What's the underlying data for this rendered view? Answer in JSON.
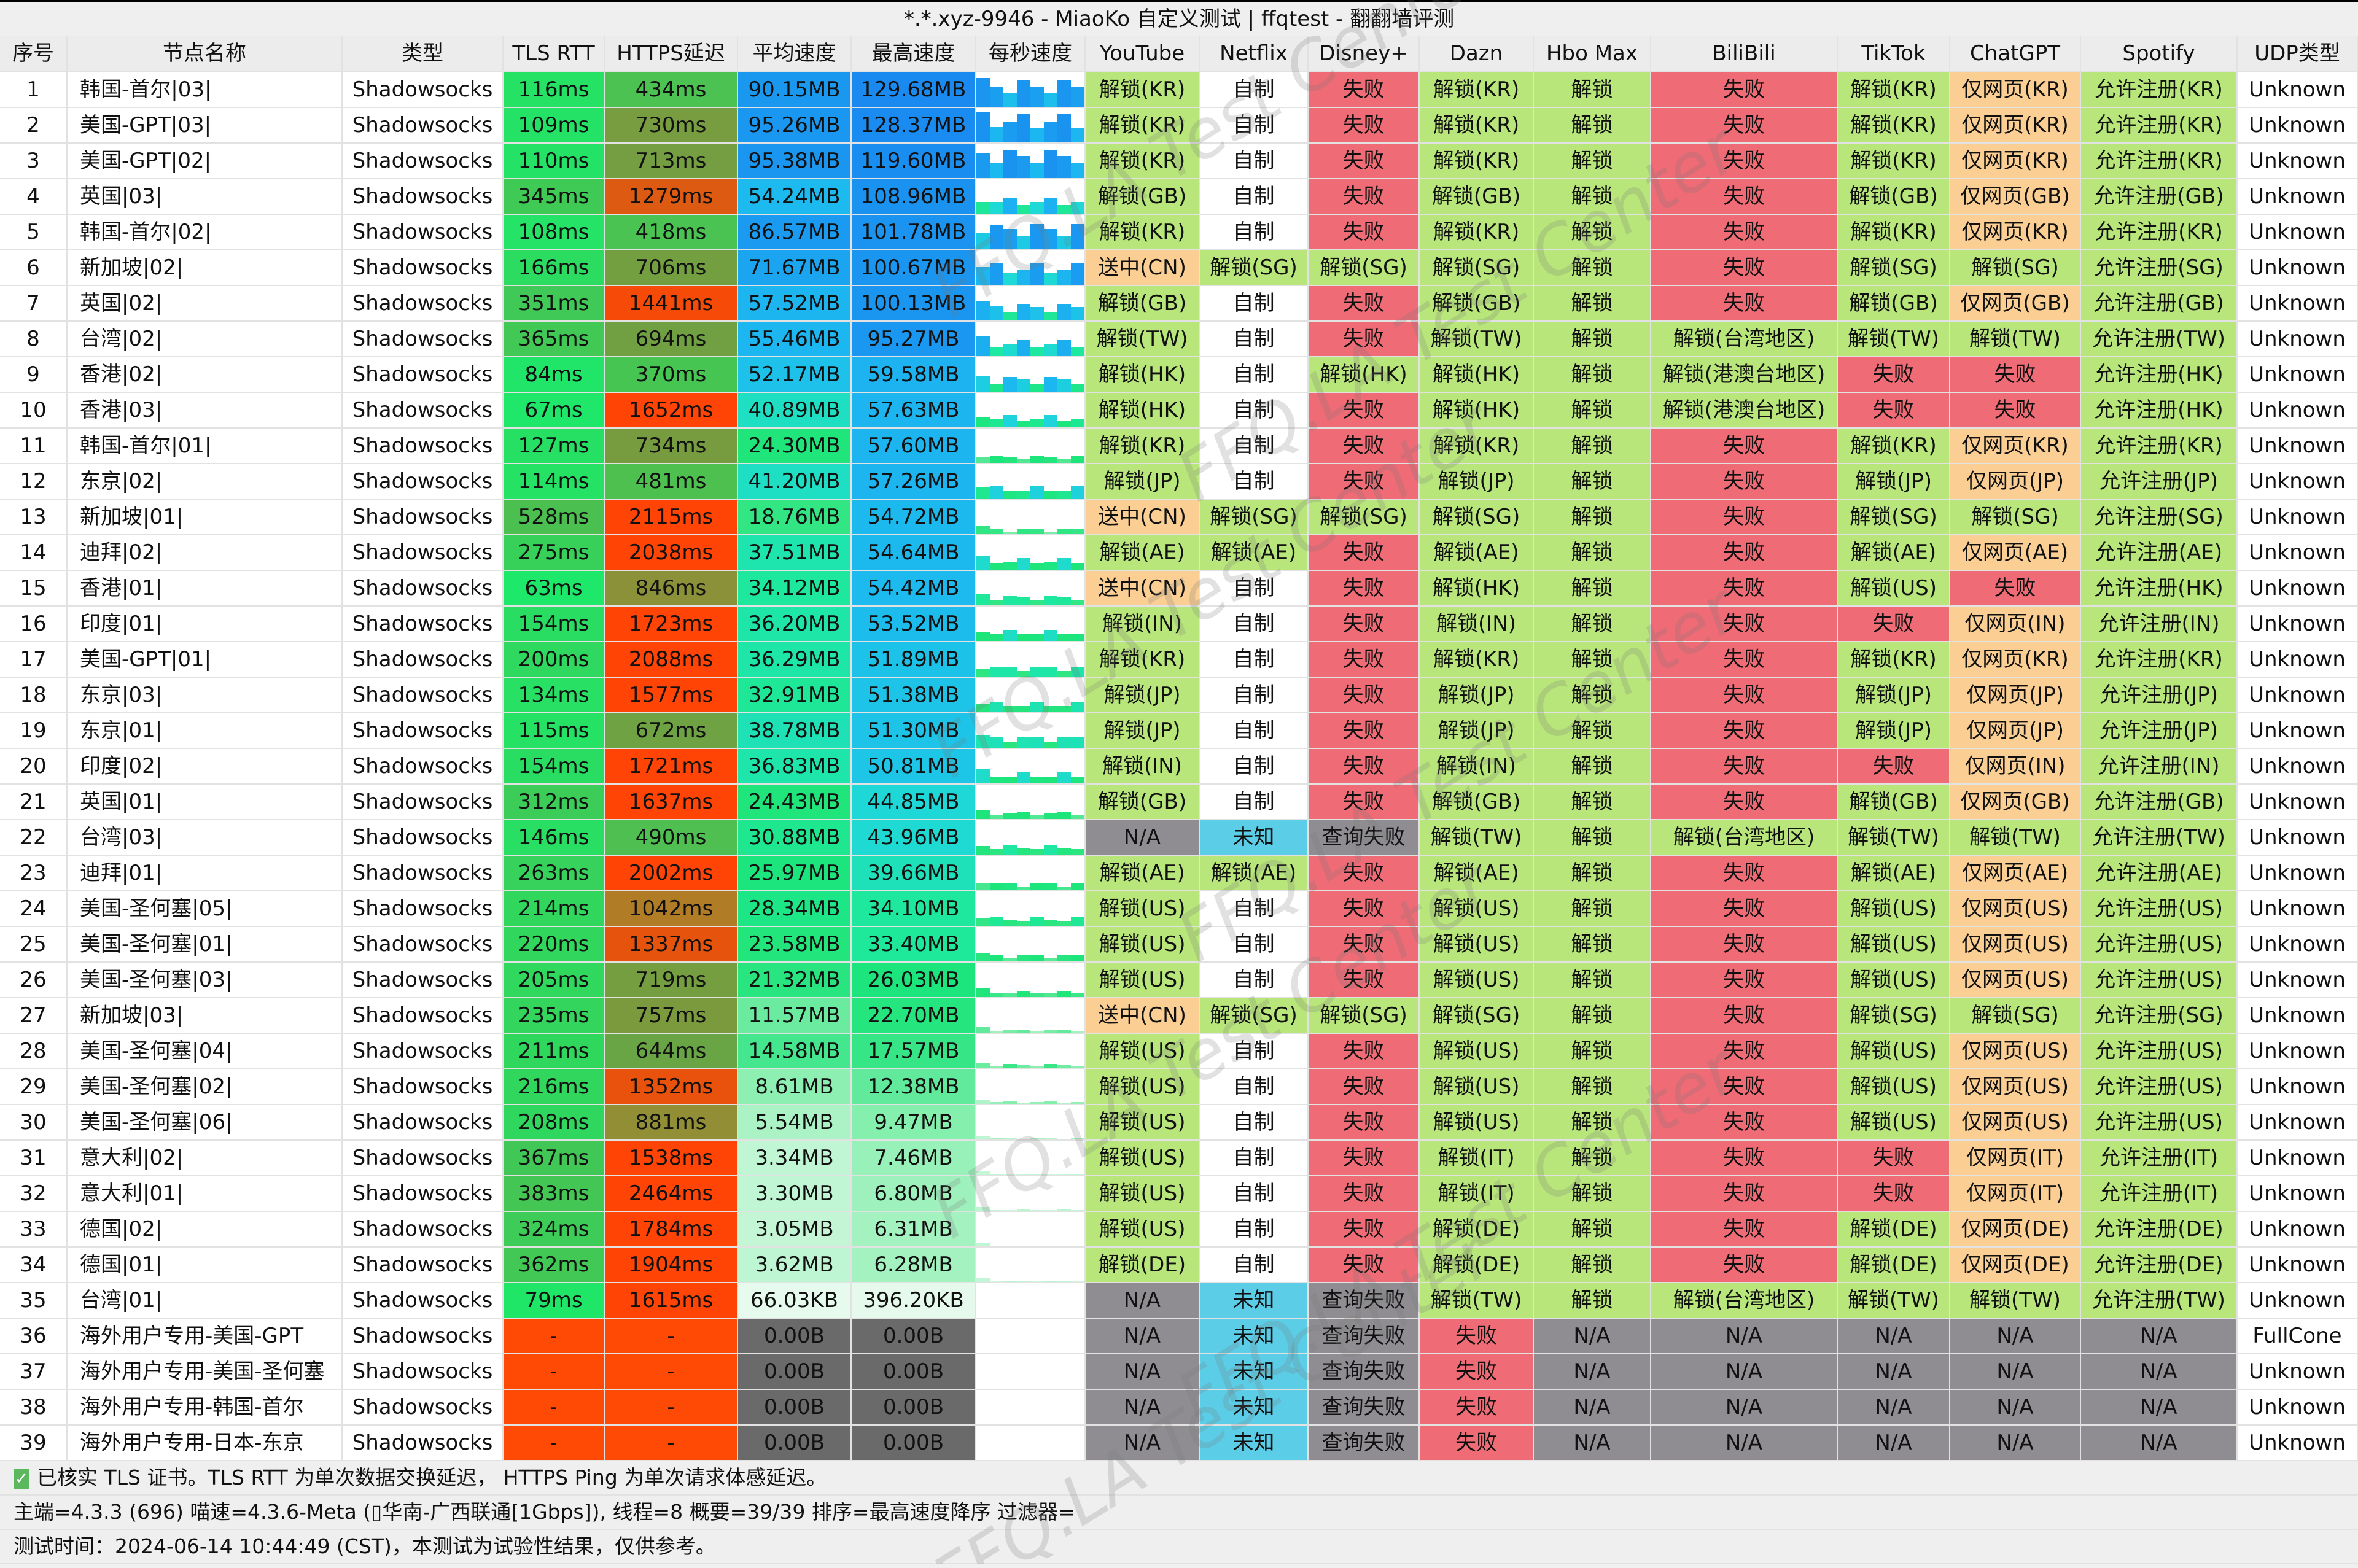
{
  "window_title": "*.*.xyz-9946 - MiaoKo 自定义测试 | ffqtest - 翻翻墙评测",
  "watermark": "FFQ.LA Test Center",
  "columns": [
    "序号",
    "节点名称",
    "类型",
    "TLS RTT",
    "HTTPS延迟",
    "平均速度",
    "最高速度",
    "每秒速度",
    "YouTube",
    "Netflix",
    "Disney+",
    "Dazn",
    "Hbo Max",
    "BiliBili",
    "TikTok",
    "ChatGPT",
    "Spotify",
    "UDP类型"
  ],
  "colors": {
    "unlock": "#b8e67a",
    "fail": "#ef6b75",
    "partial": "#fbcf94",
    "na": "#8f8d91",
    "unknown": "#5ccde6",
    "white": "#ffffff",
    "no_data": "#ff4a05",
    "zero_speed": "#6a6a6a"
  },
  "rows": [
    [
      "1",
      "韩国-首尔|03|",
      "Shadowsocks",
      "116ms",
      "434ms",
      "90.15MB",
      "129.68MB",
      "解锁(KR)",
      "自制",
      "失败",
      "解锁(KR)",
      "解锁",
      "失败",
      "解锁(KR)",
      "仅网页(KR)",
      "允许注册(KR)",
      "Unknown"
    ],
    [
      "2",
      "美国-GPT|03|",
      "Shadowsocks",
      "109ms",
      "730ms",
      "95.26MB",
      "128.37MB",
      "解锁(KR)",
      "自制",
      "失败",
      "解锁(KR)",
      "解锁",
      "失败",
      "解锁(KR)",
      "仅网页(KR)",
      "允许注册(KR)",
      "Unknown"
    ],
    [
      "3",
      "美国-GPT|02|",
      "Shadowsocks",
      "110ms",
      "713ms",
      "95.38MB",
      "119.60MB",
      "解锁(KR)",
      "自制",
      "失败",
      "解锁(KR)",
      "解锁",
      "失败",
      "解锁(KR)",
      "仅网页(KR)",
      "允许注册(KR)",
      "Unknown"
    ],
    [
      "4",
      "英国|03|",
      "Shadowsocks",
      "345ms",
      "1279ms",
      "54.24MB",
      "108.96MB",
      "解锁(GB)",
      "自制",
      "失败",
      "解锁(GB)",
      "解锁",
      "失败",
      "解锁(GB)",
      "仅网页(GB)",
      "允许注册(GB)",
      "Unknown"
    ],
    [
      "5",
      "韩国-首尔|02|",
      "Shadowsocks",
      "108ms",
      "418ms",
      "86.57MB",
      "101.78MB",
      "解锁(KR)",
      "自制",
      "失败",
      "解锁(KR)",
      "解锁",
      "失败",
      "解锁(KR)",
      "仅网页(KR)",
      "允许注册(KR)",
      "Unknown"
    ],
    [
      "6",
      "新加坡|02|",
      "Shadowsocks",
      "166ms",
      "706ms",
      "71.67MB",
      "100.67MB",
      "送中(CN)",
      "解锁(SG)",
      "解锁(SG)",
      "解锁(SG)",
      "解锁",
      "失败",
      "解锁(SG)",
      "解锁(SG)",
      "允许注册(SG)",
      "Unknown"
    ],
    [
      "7",
      "英国|02|",
      "Shadowsocks",
      "351ms",
      "1441ms",
      "57.52MB",
      "100.13MB",
      "解锁(GB)",
      "自制",
      "失败",
      "解锁(GB)",
      "解锁",
      "失败",
      "解锁(GB)",
      "仅网页(GB)",
      "允许注册(GB)",
      "Unknown"
    ],
    [
      "8",
      "台湾|02|",
      "Shadowsocks",
      "365ms",
      "694ms",
      "55.46MB",
      "95.27MB",
      "解锁(TW)",
      "自制",
      "失败",
      "解锁(TW)",
      "解锁",
      "解锁(台湾地区)",
      "解锁(TW)",
      "解锁(TW)",
      "允许注册(TW)",
      "Unknown"
    ],
    [
      "9",
      "香港|02|",
      "Shadowsocks",
      "84ms",
      "370ms",
      "52.17MB",
      "59.58MB",
      "解锁(HK)",
      "自制",
      "解锁(HK)",
      "解锁(HK)",
      "解锁",
      "解锁(港澳台地区)",
      "失败",
      "失败",
      "允许注册(HK)",
      "Unknown"
    ],
    [
      "10",
      "香港|03|",
      "Shadowsocks",
      "67ms",
      "1652ms",
      "40.89MB",
      "57.63MB",
      "解锁(HK)",
      "自制",
      "失败",
      "解锁(HK)",
      "解锁",
      "解锁(港澳台地区)",
      "失败",
      "失败",
      "允许注册(HK)",
      "Unknown"
    ],
    [
      "11",
      "韩国-首尔|01|",
      "Shadowsocks",
      "127ms",
      "734ms",
      "24.30MB",
      "57.60MB",
      "解锁(KR)",
      "自制",
      "失败",
      "解锁(KR)",
      "解锁",
      "失败",
      "解锁(KR)",
      "仅网页(KR)",
      "允许注册(KR)",
      "Unknown"
    ],
    [
      "12",
      "东京|02|",
      "Shadowsocks",
      "114ms",
      "481ms",
      "41.20MB",
      "57.26MB",
      "解锁(JP)",
      "自制",
      "失败",
      "解锁(JP)",
      "解锁",
      "失败",
      "解锁(JP)",
      "仅网页(JP)",
      "允许注册(JP)",
      "Unknown"
    ],
    [
      "13",
      "新加坡|01|",
      "Shadowsocks",
      "528ms",
      "2115ms",
      "18.76MB",
      "54.72MB",
      "送中(CN)",
      "解锁(SG)",
      "解锁(SG)",
      "解锁(SG)",
      "解锁",
      "失败",
      "解锁(SG)",
      "解锁(SG)",
      "允许注册(SG)",
      "Unknown"
    ],
    [
      "14",
      "迪拜|02|",
      "Shadowsocks",
      "275ms",
      "2038ms",
      "37.51MB",
      "54.64MB",
      "解锁(AE)",
      "解锁(AE)",
      "失败",
      "解锁(AE)",
      "解锁",
      "失败",
      "解锁(AE)",
      "仅网页(AE)",
      "允许注册(AE)",
      "Unknown"
    ],
    [
      "15",
      "香港|01|",
      "Shadowsocks",
      "63ms",
      "846ms",
      "34.12MB",
      "54.42MB",
      "送中(CN)",
      "自制",
      "失败",
      "解锁(HK)",
      "解锁",
      "失败",
      "解锁(US)",
      "失败",
      "允许注册(HK)",
      "Unknown"
    ],
    [
      "16",
      "印度|01|",
      "Shadowsocks",
      "154ms",
      "1723ms",
      "36.20MB",
      "53.52MB",
      "解锁(IN)",
      "自制",
      "失败",
      "解锁(IN)",
      "解锁",
      "失败",
      "失败",
      "仅网页(IN)",
      "允许注册(IN)",
      "Unknown"
    ],
    [
      "17",
      "美国-GPT|01|",
      "Shadowsocks",
      "200ms",
      "2088ms",
      "36.29MB",
      "51.89MB",
      "解锁(KR)",
      "自制",
      "失败",
      "解锁(KR)",
      "解锁",
      "失败",
      "解锁(KR)",
      "仅网页(KR)",
      "允许注册(KR)",
      "Unknown"
    ],
    [
      "18",
      "东京|03|",
      "Shadowsocks",
      "134ms",
      "1577ms",
      "32.91MB",
      "51.38MB",
      "解锁(JP)",
      "自制",
      "失败",
      "解锁(JP)",
      "解锁",
      "失败",
      "解锁(JP)",
      "仅网页(JP)",
      "允许注册(JP)",
      "Unknown"
    ],
    [
      "19",
      "东京|01|",
      "Shadowsocks",
      "115ms",
      "672ms",
      "38.78MB",
      "51.30MB",
      "解锁(JP)",
      "自制",
      "失败",
      "解锁(JP)",
      "解锁",
      "失败",
      "解锁(JP)",
      "仅网页(JP)",
      "允许注册(JP)",
      "Unknown"
    ],
    [
      "20",
      "印度|02|",
      "Shadowsocks",
      "154ms",
      "1721ms",
      "36.83MB",
      "50.81MB",
      "解锁(IN)",
      "自制",
      "失败",
      "解锁(IN)",
      "解锁",
      "失败",
      "失败",
      "仅网页(IN)",
      "允许注册(IN)",
      "Unknown"
    ],
    [
      "21",
      "英国|01|",
      "Shadowsocks",
      "312ms",
      "1637ms",
      "24.43MB",
      "44.85MB",
      "解锁(GB)",
      "自制",
      "失败",
      "解锁(GB)",
      "解锁",
      "失败",
      "解锁(GB)",
      "仅网页(GB)",
      "允许注册(GB)",
      "Unknown"
    ],
    [
      "22",
      "台湾|03|",
      "Shadowsocks",
      "146ms",
      "490ms",
      "30.88MB",
      "43.96MB",
      "N/A",
      "未知",
      "查询失败",
      "解锁(TW)",
      "解锁",
      "解锁(台湾地区)",
      "解锁(TW)",
      "解锁(TW)",
      "允许注册(TW)",
      "Unknown"
    ],
    [
      "23",
      "迪拜|01|",
      "Shadowsocks",
      "263ms",
      "2002ms",
      "25.97MB",
      "39.66MB",
      "解锁(AE)",
      "解锁(AE)",
      "失败",
      "解锁(AE)",
      "解锁",
      "失败",
      "解锁(AE)",
      "仅网页(AE)",
      "允许注册(AE)",
      "Unknown"
    ],
    [
      "24",
      "美国-圣何塞|05|",
      "Shadowsocks",
      "214ms",
      "1042ms",
      "28.34MB",
      "34.10MB",
      "解锁(US)",
      "自制",
      "失败",
      "解锁(US)",
      "解锁",
      "失败",
      "解锁(US)",
      "仅网页(US)",
      "允许注册(US)",
      "Unknown"
    ],
    [
      "25",
      "美国-圣何塞|01|",
      "Shadowsocks",
      "220ms",
      "1337ms",
      "23.58MB",
      "33.40MB",
      "解锁(US)",
      "自制",
      "失败",
      "解锁(US)",
      "解锁",
      "失败",
      "解锁(US)",
      "仅网页(US)",
      "允许注册(US)",
      "Unknown"
    ],
    [
      "26",
      "美国-圣何塞|03|",
      "Shadowsocks",
      "205ms",
      "719ms",
      "21.32MB",
      "26.03MB",
      "解锁(US)",
      "自制",
      "失败",
      "解锁(US)",
      "解锁",
      "失败",
      "解锁(US)",
      "仅网页(US)",
      "允许注册(US)",
      "Unknown"
    ],
    [
      "27",
      "新加坡|03|",
      "Shadowsocks",
      "235ms",
      "757ms",
      "11.57MB",
      "22.70MB",
      "送中(CN)",
      "解锁(SG)",
      "解锁(SG)",
      "解锁(SG)",
      "解锁",
      "失败",
      "解锁(SG)",
      "解锁(SG)",
      "允许注册(SG)",
      "Unknown"
    ],
    [
      "28",
      "美国-圣何塞|04|",
      "Shadowsocks",
      "211ms",
      "644ms",
      "14.58MB",
      "17.57MB",
      "解锁(US)",
      "自制",
      "失败",
      "解锁(US)",
      "解锁",
      "失败",
      "解锁(US)",
      "仅网页(US)",
      "允许注册(US)",
      "Unknown"
    ],
    [
      "29",
      "美国-圣何塞|02|",
      "Shadowsocks",
      "216ms",
      "1352ms",
      "8.61MB",
      "12.38MB",
      "解锁(US)",
      "自制",
      "失败",
      "解锁(US)",
      "解锁",
      "失败",
      "解锁(US)",
      "仅网页(US)",
      "允许注册(US)",
      "Unknown"
    ],
    [
      "30",
      "美国-圣何塞|06|",
      "Shadowsocks",
      "208ms",
      "881ms",
      "5.54MB",
      "9.47MB",
      "解锁(US)",
      "自制",
      "失败",
      "解锁(US)",
      "解锁",
      "失败",
      "解锁(US)",
      "仅网页(US)",
      "允许注册(US)",
      "Unknown"
    ],
    [
      "31",
      "意大利|02|",
      "Shadowsocks",
      "367ms",
      "1538ms",
      "3.34MB",
      "7.46MB",
      "解锁(US)",
      "自制",
      "失败",
      "解锁(IT)",
      "解锁",
      "失败",
      "失败",
      "仅网页(IT)",
      "允许注册(IT)",
      "Unknown"
    ],
    [
      "32",
      "意大利|01|",
      "Shadowsocks",
      "383ms",
      "2464ms",
      "3.30MB",
      "6.80MB",
      "解锁(US)",
      "自制",
      "失败",
      "解锁(IT)",
      "解锁",
      "失败",
      "失败",
      "仅网页(IT)",
      "允许注册(IT)",
      "Unknown"
    ],
    [
      "33",
      "德国|02|",
      "Shadowsocks",
      "324ms",
      "1784ms",
      "3.05MB",
      "6.31MB",
      "解锁(US)",
      "自制",
      "失败",
      "解锁(DE)",
      "解锁",
      "失败",
      "解锁(DE)",
      "仅网页(DE)",
      "允许注册(DE)",
      "Unknown"
    ],
    [
      "34",
      "德国|01|",
      "Shadowsocks",
      "362ms",
      "1904ms",
      "3.62MB",
      "6.28MB",
      "解锁(DE)",
      "自制",
      "失败",
      "解锁(DE)",
      "解锁",
      "失败",
      "解锁(DE)",
      "仅网页(DE)",
      "允许注册(DE)",
      "Unknown"
    ],
    [
      "35",
      "台湾|01|",
      "Shadowsocks",
      "79ms",
      "1615ms",
      "66.03KB",
      "396.20KB",
      "N/A",
      "未知",
      "查询失败",
      "解锁(TW)",
      "解锁",
      "解锁(台湾地区)",
      "解锁(TW)",
      "解锁(TW)",
      "允许注册(TW)",
      "Unknown"
    ],
    [
      "36",
      "海外用户专用-美国-GPT",
      "Shadowsocks",
      "-",
      "-",
      "0.00B",
      "0.00B",
      "N/A",
      "未知",
      "查询失败",
      "失败",
      "N/A",
      "N/A",
      "N/A",
      "N/A",
      "N/A",
      "FullCone"
    ],
    [
      "37",
      "海外用户专用-美国-圣何塞",
      "Shadowsocks",
      "-",
      "-",
      "0.00B",
      "0.00B",
      "N/A",
      "未知",
      "查询失败",
      "失败",
      "N/A",
      "N/A",
      "N/A",
      "N/A",
      "N/A",
      "Unknown"
    ],
    [
      "38",
      "海外用户专用-韩国-首尔",
      "Shadowsocks",
      "-",
      "-",
      "0.00B",
      "0.00B",
      "N/A",
      "未知",
      "查询失败",
      "失败",
      "N/A",
      "N/A",
      "N/A",
      "N/A",
      "N/A",
      "Unknown"
    ],
    [
      "39",
      "海外用户专用-日本-东京",
      "Shadowsocks",
      "-",
      "-",
      "0.00B",
      "0.00B",
      "N/A",
      "未知",
      "查询失败",
      "失败",
      "N/A",
      "N/A",
      "N/A",
      "N/A",
      "N/A",
      "Unknown"
    ]
  ],
  "footer": {
    "tls_note": "已核实 TLS 证书。TLS RTT 为单次数据交换延迟， HTTPS Ping 为单次请求体感延迟。",
    "tls_verified_icon": "check-icon",
    "info": "主端=4.3.3 (696) 喵速=4.3.6-Meta (▯华南-广西联通[1Gbps]), 线程=8 概要=39/39 排序=最高速度降序 过滤器=",
    "test_time": "测试时间：2024-06-14 10:44:49 (CST)，本测试为试验性结果，仅供参考。"
  }
}
